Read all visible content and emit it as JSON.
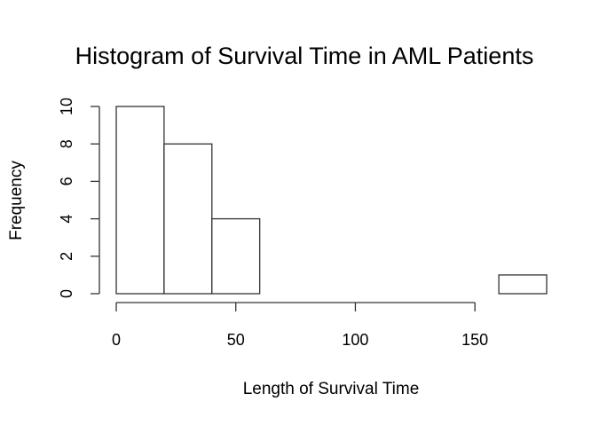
{
  "chart_data": {
    "type": "bar",
    "subtype": "histogram",
    "title": "Histogram of Survival Time in AML Patients",
    "xlabel": "Length of Survival Time",
    "ylabel": "Frequency",
    "bins": [
      {
        "start": 0,
        "end": 20,
        "count": 10
      },
      {
        "start": 20,
        "end": 40,
        "count": 8
      },
      {
        "start": 40,
        "end": 60,
        "count": 4
      },
      {
        "start": 60,
        "end": 80,
        "count": 0
      },
      {
        "start": 80,
        "end": 100,
        "count": 0
      },
      {
        "start": 100,
        "end": 120,
        "count": 0
      },
      {
        "start": 120,
        "end": 140,
        "count": 0
      },
      {
        "start": 140,
        "end": 160,
        "count": 0
      },
      {
        "start": 160,
        "end": 180,
        "count": 1
      }
    ],
    "xlim": [
      0,
      180
    ],
    "ylim": [
      0,
      10
    ],
    "xticks": [
      0,
      50,
      100,
      150
    ],
    "yticks": [
      0,
      2,
      4,
      6,
      8,
      10
    ],
    "grid": false,
    "legend": "none"
  }
}
